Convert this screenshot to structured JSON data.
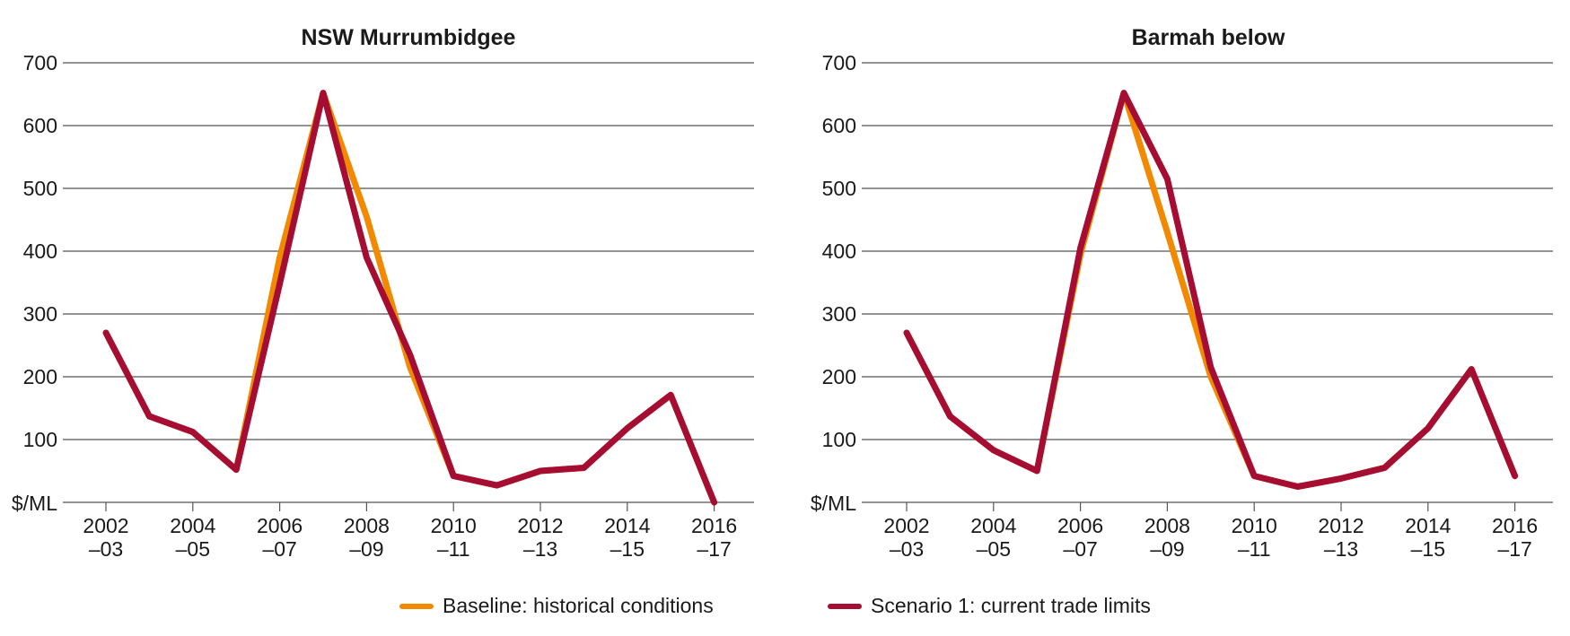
{
  "chart_data": [
    {
      "type": "line",
      "title": "NSW Murrumbidgee",
      "ylabel": "$/ML",
      "ylim": [
        0,
        700
      ],
      "yticks": [
        100,
        200,
        300,
        400,
        500,
        600,
        700
      ],
      "grid": true,
      "x_tick_labels": [
        {
          "top": "2002",
          "bottom": "–03"
        },
        {
          "top": "2004",
          "bottom": "–05"
        },
        {
          "top": "2006",
          "bottom": "–07"
        },
        {
          "top": "2008",
          "bottom": "–09"
        },
        {
          "top": "2010",
          "bottom": "–11"
        },
        {
          "top": "2012",
          "bottom": "–13"
        },
        {
          "top": "2014",
          "bottom": "–15"
        },
        {
          "top": "2016",
          "bottom": "–17"
        }
      ],
      "x": [
        "2002–03",
        "2003–04",
        "2004–05",
        "2005–06",
        "2006–07",
        "2007–08",
        "2008–09",
        "2009–10",
        "2010–11",
        "2011–12",
        "2012–13",
        "2013–14",
        "2014–15",
        "2015–16",
        "2016–17"
      ],
      "series": [
        {
          "name": "Baseline: historical conditions",
          "color": "#f18a00",
          "values": [
            270,
            137,
            112,
            52,
            390,
            652,
            455,
            215,
            42,
            27,
            50,
            55,
            118,
            171,
            0
          ]
        },
        {
          "name": "Scenario 1: current trade limits",
          "color": "#a50d33",
          "values": [
            270,
            137,
            112,
            52,
            348,
            652,
            390,
            235,
            42,
            27,
            50,
            55,
            118,
            171,
            0
          ]
        }
      ]
    },
    {
      "type": "line",
      "title": "Barmah below",
      "ylabel": "$/ML",
      "ylim": [
        0,
        700
      ],
      "yticks": [
        100,
        200,
        300,
        400,
        500,
        600,
        700
      ],
      "grid": true,
      "x_tick_labels": [
        {
          "top": "2002",
          "bottom": "–03"
        },
        {
          "top": "2004",
          "bottom": "–05"
        },
        {
          "top": "2006",
          "bottom": "–07"
        },
        {
          "top": "2008",
          "bottom": "–09"
        },
        {
          "top": "2010",
          "bottom": "–11"
        },
        {
          "top": "2012",
          "bottom": "–13"
        },
        {
          "top": "2014",
          "bottom": "–15"
        },
        {
          "top": "2016",
          "bottom": "–17"
        }
      ],
      "x": [
        "2002–03",
        "2003–04",
        "2004–05",
        "2005–06",
        "2006–07",
        "2007–08",
        "2008–09",
        "2009–10",
        "2010–11",
        "2011–12",
        "2012–13",
        "2013–14",
        "2014–15",
        "2015–16",
        "2016–17"
      ],
      "series": [
        {
          "name": "Baseline: historical conditions",
          "color": "#f18a00",
          "values": [
            270,
            137,
            83,
            50,
            395,
            652,
            430,
            200,
            42,
            25,
            38,
            55,
            118,
            212,
            42
          ]
        },
        {
          "name": "Scenario 1: current trade limits",
          "color": "#a50d33",
          "values": [
            270,
            137,
            83,
            50,
            405,
            652,
            515,
            215,
            42,
            25,
            38,
            55,
            118,
            212,
            42
          ]
        }
      ]
    }
  ],
  "legend": {
    "baseline_label": "Baseline: historical conditions",
    "scenario_label": "Scenario 1: current trade limits",
    "baseline_color": "#f18a00",
    "scenario_color": "#a50d33"
  }
}
